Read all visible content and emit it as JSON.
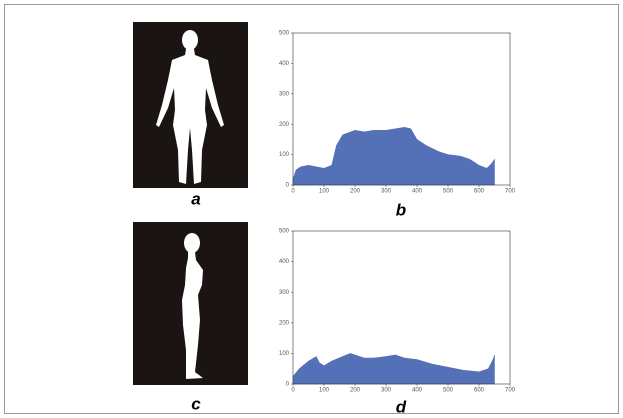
{
  "chart_data": [
    {
      "type": "area",
      "color": "#5470b6",
      "x": [
        0,
        10,
        25,
        50,
        75,
        100,
        125,
        140,
        160,
        200,
        230,
        260,
        300,
        330,
        360,
        380,
        400,
        430,
        470,
        500,
        540,
        570,
        600,
        625,
        640,
        650
      ],
      "values": [
        20,
        50,
        60,
        65,
        60,
        55,
        65,
        130,
        165,
        180,
        175,
        180,
        180,
        185,
        190,
        185,
        150,
        130,
        110,
        100,
        95,
        85,
        65,
        55,
        70,
        85
      ],
      "xlim": [
        0,
        700
      ],
      "ylim": [
        0,
        500
      ],
      "xticks": [
        0,
        100,
        200,
        300,
        400,
        500,
        600,
        700
      ],
      "yticks": [
        0,
        100,
        200,
        300,
        400,
        500
      ]
    },
    {
      "type": "area",
      "color": "#5470b6",
      "x": [
        0,
        20,
        50,
        75,
        85,
        100,
        125,
        160,
        185,
        200,
        230,
        260,
        300,
        330,
        360,
        400,
        450,
        500,
        550,
        600,
        630,
        645,
        650
      ],
      "values": [
        25,
        50,
        75,
        90,
        70,
        60,
        75,
        90,
        100,
        95,
        85,
        85,
        90,
        95,
        85,
        80,
        65,
        55,
        45,
        40,
        50,
        80,
        95
      ],
      "xlim": [
        0,
        700
      ],
      "ylim": [
        0,
        500
      ],
      "xticks": [
        0,
        100,
        200,
        300,
        400,
        500,
        600,
        700
      ],
      "yticks": [
        0,
        100,
        200,
        300,
        400,
        500
      ]
    }
  ],
  "panels": [
    "a",
    "b",
    "c",
    "d"
  ]
}
